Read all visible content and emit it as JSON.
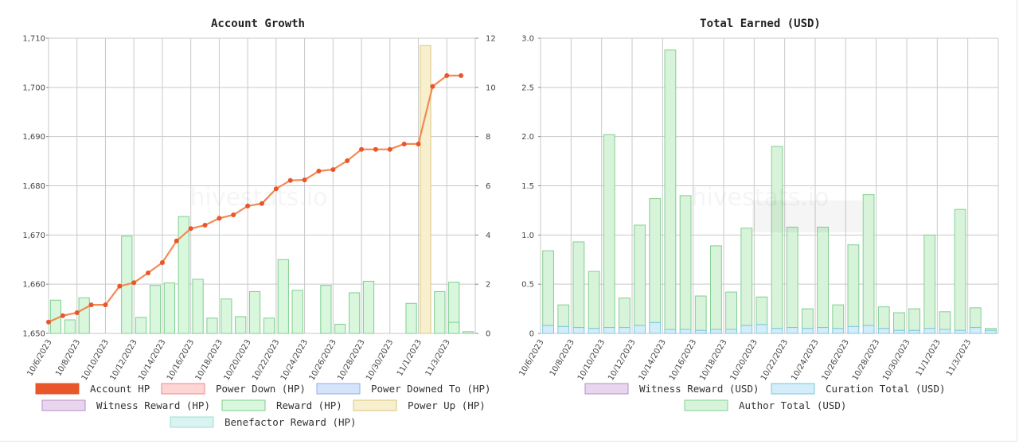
{
  "watermark": "hivestats.io",
  "chart_data": [
    {
      "type": "bar+line",
      "title": "Account Growth",
      "categories": [
        "10/6/2023",
        "10/7/2023",
        "10/8/2023",
        "10/9/2023",
        "10/10/2023",
        "10/11/2023",
        "10/12/2023",
        "10/13/2023",
        "10/14/2023",
        "10/15/2023",
        "10/16/2023",
        "10/17/2023",
        "10/18/2023",
        "10/19/2023",
        "10/20/2023",
        "10/21/2023",
        "10/22/2023",
        "10/23/2023",
        "10/24/2023",
        "10/25/2023",
        "10/26/2023",
        "10/27/2023",
        "10/28/2023",
        "10/29/2023",
        "10/30/2023",
        "10/31/2023",
        "11/1/2023",
        "11/2/2023",
        "11/3/2023",
        "11/4/2023"
      ],
      "x_tick_labels": [
        "10/6/2023",
        "10/8/2023",
        "10/10/2023",
        "10/12/2023",
        "10/14/2023",
        "10/16/2023",
        "10/18/2023",
        "10/20/2023",
        "10/22/2023",
        "10/24/2023",
        "10/26/2023",
        "10/28/2023",
        "10/30/2023",
        "11/1/2023",
        "11/3/2023"
      ],
      "y_left": {
        "min": 1650,
        "max": 1710,
        "step": 10,
        "ticks": [
          "1,650",
          "1,660",
          "1,670",
          "1,680",
          "1,690",
          "1,700",
          "1,710"
        ]
      },
      "y_right": {
        "min": 0,
        "max": 12,
        "step": 2,
        "ticks": [
          "0",
          "2",
          "4",
          "6",
          "8",
          "10",
          "12"
        ]
      },
      "line_series": {
        "name": "Account HP",
        "values": [
          1652.3,
          1653.6,
          1654.2,
          1655.8,
          1655.8,
          1659.6,
          1660.3,
          1662.3,
          1664.4,
          1668.8,
          1671.3,
          1672.0,
          1673.4,
          1674.1,
          1675.9,
          1676.4,
          1679.4,
          1681.1,
          1681.2,
          1683.0,
          1683.3,
          1685.1,
          1687.4,
          1687.4,
          1687.4,
          1688.5,
          1688.5,
          1700.2,
          1702.4,
          1702.4
        ]
      },
      "bar_series": [
        {
          "name": "Reward (HP)",
          "values": [
            1.35,
            0.55,
            1.45,
            0.0,
            0.0,
            3.95,
            0.65,
            1.95,
            2.05,
            4.75,
            2.2,
            0.62,
            1.4,
            0.68,
            1.7,
            0.62,
            3.0,
            1.75,
            0.0,
            1.95,
            0.37,
            1.65,
            2.12,
            0.0,
            0.0,
            1.22,
            0.0,
            1.7,
            2.08,
            0.07
          ]
        },
        {
          "name": "Power Up (HP)",
          "values": [
            0,
            0,
            0,
            0,
            0,
            0,
            0,
            0,
            0,
            0,
            0,
            0,
            0,
            0,
            0,
            0,
            0,
            0,
            0,
            0,
            0,
            0,
            0,
            0,
            0,
            0,
            11.7,
            0,
            0,
            0
          ]
        }
      ],
      "legend": [
        "Account HP",
        "Power Down (HP)",
        "Power Downed To (HP)",
        "Witness Reward (HP)",
        "Reward (HP)",
        "Power Up (HP)",
        "Benefactor Reward (HP)"
      ],
      "extra_bar": {
        "index": 28,
        "value": 0.45
      }
    },
    {
      "type": "stacked-bar",
      "title": "Total Earned (USD)",
      "categories": [
        "10/6/2023",
        "10/7/2023",
        "10/8/2023",
        "10/9/2023",
        "10/10/2023",
        "10/11/2023",
        "10/12/2023",
        "10/13/2023",
        "10/14/2023",
        "10/15/2023",
        "10/16/2023",
        "10/17/2023",
        "10/18/2023",
        "10/19/2023",
        "10/20/2023",
        "10/21/2023",
        "10/22/2023",
        "10/23/2023",
        "10/24/2023",
        "10/25/2023",
        "10/26/2023",
        "10/27/2023",
        "10/28/2023",
        "10/29/2023",
        "10/30/2023",
        "10/31/2023",
        "11/1/2023",
        "11/2/2023",
        "11/3/2023",
        "11/4/2023"
      ],
      "x_tick_labels": [
        "10/6/2023",
        "10/8/2023",
        "10/10/2023",
        "10/12/2023",
        "10/14/2023",
        "10/16/2023",
        "10/18/2023",
        "10/20/2023",
        "10/22/2023",
        "10/24/2023",
        "10/26/2023",
        "10/28/2023",
        "10/30/2023",
        "11/1/2023",
        "11/3/2023"
      ],
      "y": {
        "min": 0,
        "max": 3.0,
        "step": 0.5,
        "ticks": [
          "0",
          "0.5",
          "1.0",
          "1.5",
          "2.0",
          "2.5",
          "3.0"
        ]
      },
      "series": [
        {
          "name": "Curation Total (USD)",
          "values": [
            0.08,
            0.07,
            0.06,
            0.05,
            0.06,
            0.06,
            0.08,
            0.11,
            0.04,
            0.04,
            0.03,
            0.04,
            0.04,
            0.08,
            0.09,
            0.05,
            0.06,
            0.05,
            0.06,
            0.05,
            0.07,
            0.08,
            0.05,
            0.03,
            0.03,
            0.05,
            0.04,
            0.03,
            0.06,
            0.03
          ]
        },
        {
          "name": "Author Total (USD)",
          "values": [
            0.76,
            0.22,
            0.87,
            0.58,
            1.96,
            0.3,
            1.02,
            1.26,
            2.84,
            1.36,
            0.35,
            0.85,
            0.38,
            0.99,
            0.28,
            1.85,
            1.02,
            0.2,
            1.02,
            0.24,
            0.83,
            1.33,
            0.22,
            0.18,
            0.22,
            0.95,
            0.18,
            1.23,
            0.2,
            0.02
          ]
        }
      ],
      "legend": [
        "Witness Reward (USD)",
        "Curation Total (USD)",
        "Author Total (USD)"
      ]
    }
  ],
  "colors": {
    "account_hp": "#e8562a",
    "account_hp_line": "#f28a55",
    "power_down_fill": "#fdd5d5",
    "power_down_stroke": "#f08a8a",
    "power_downed_to_fill": "#d6e4fb",
    "power_downed_to_stroke": "#8fb1ef",
    "witness_fill": "#e8d6ee",
    "witness_stroke": "#b98cc8",
    "reward_fill": "#d8f7dc",
    "reward_stroke": "#7ecf8e",
    "power_up_fill": "#f7efcd",
    "power_up_stroke": "#d9c77f",
    "benefactor_fill": "#d8f3f0",
    "benefactor_stroke": "#9fdcd3",
    "curation_fill": "#d3eef8",
    "curation_stroke": "#7ec6e2",
    "author_fill": "#d7f3d9",
    "author_stroke": "#85cf92",
    "grid": "#c9c9c9"
  }
}
